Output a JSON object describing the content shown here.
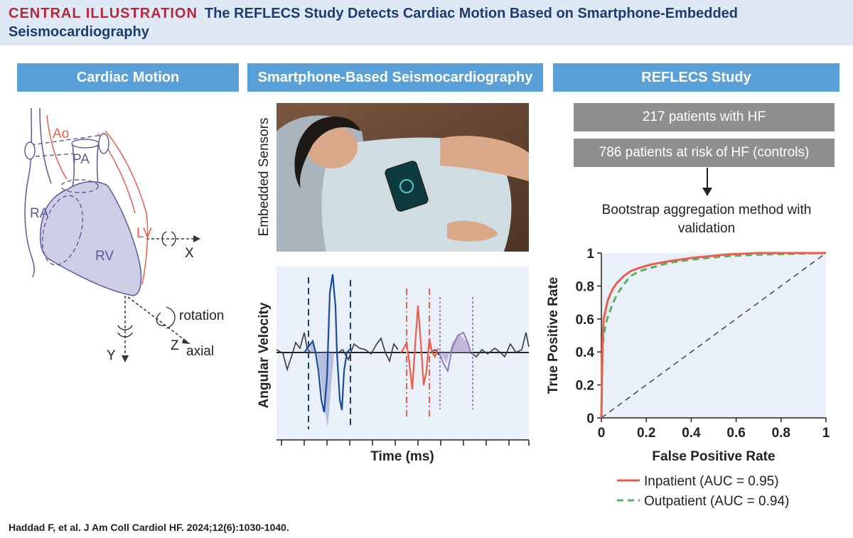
{
  "title": {
    "label": "CENTRAL ILLUSTRATION",
    "text": "The REFLECS Study Detects Cardiac Motion Based on Smartphone-Embedded Seismocardiography"
  },
  "panels": {
    "cardiac_motion": {
      "header": "Cardiac Motion",
      "labels": {
        "ao": "Ao",
        "pa": "PA",
        "ra": "RA",
        "lv": "LV",
        "rv": "RV",
        "x": "X",
        "y": "Y",
        "z": "Z",
        "rotation": "rotation",
        "axial": "axial"
      }
    },
    "seismo": {
      "header": "Smartphone-Based Seismocardiography",
      "photo_label": "Embedded Sensors",
      "ylabel": "Angular Velocity",
      "xlabel": "Time (ms)"
    },
    "reflecs": {
      "header": "REFLECS Study",
      "box1": "217 patients with HF",
      "box2": "786 patients at risk of HF (controls)",
      "method": "Bootstrap aggregation method with validation"
    }
  },
  "citation": "Haddad F, et al. J Am Coll Cardiol HF. 2024;12(6):1030-1040.",
  "colors": {
    "title_band": "#dfe9f6",
    "header_blue": "#5aa0d8",
    "title_red": "#b5273a",
    "title_navy": "#1c3c70",
    "inpatient": "#e8604c",
    "outpatient": "#5bb060",
    "heart_fill": "#cdcde6",
    "heart_line": "#5a5a9a"
  },
  "chart_data": {
    "type": "line",
    "title": "",
    "xlabel": "False Positive Rate",
    "ylabel": "True Positive Rate",
    "xlim": [
      0,
      1
    ],
    "ylim": [
      0,
      1
    ],
    "xticks": [
      "0",
      "0.2",
      "0.4",
      "0.6",
      "0.8",
      "1"
    ],
    "yticks": [
      "0",
      "0.2",
      "0.4",
      "0.6",
      "0.8",
      "1"
    ],
    "legend_position": "bottom",
    "series": [
      {
        "name": "Inpatient (AUC = 0.95)",
        "style": "solid",
        "x": [
          0,
          0.005,
          0.01,
          0.02,
          0.03,
          0.05,
          0.07,
          0.1,
          0.13,
          0.17,
          0.22,
          0.3,
          0.4,
          0.55,
          0.7,
          1.0
        ],
        "y": [
          0,
          0.45,
          0.6,
          0.66,
          0.72,
          0.78,
          0.82,
          0.86,
          0.89,
          0.91,
          0.93,
          0.95,
          0.97,
          0.99,
          1.0,
          1.0
        ]
      },
      {
        "name": "Outpatient (AUC = 0.94)",
        "style": "dashed",
        "x": [
          0,
          0.005,
          0.01,
          0.02,
          0.03,
          0.05,
          0.07,
          0.1,
          0.13,
          0.17,
          0.22,
          0.3,
          0.4,
          0.55,
          0.7,
          1.0
        ],
        "y": [
          0,
          0.4,
          0.5,
          0.57,
          0.62,
          0.69,
          0.75,
          0.81,
          0.86,
          0.89,
          0.91,
          0.94,
          0.96,
          0.98,
          0.99,
          1.0
        ]
      },
      {
        "name": "chance",
        "style": "dashed",
        "x": [
          0,
          1
        ],
        "y": [
          0,
          1
        ]
      }
    ]
  }
}
